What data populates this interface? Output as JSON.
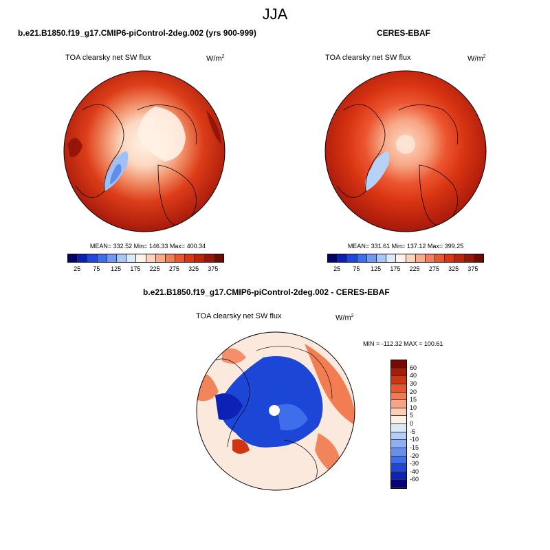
{
  "season": "JJA",
  "panels": {
    "model": {
      "title": "b.e21.B1850.f19_g17.CMIP6-piControl-2deg.002 (yrs 900-999)",
      "variable": "TOA clearsky net SW flux",
      "unit_base": "W/m",
      "unit_exp": "2",
      "stats": "MEAN= 332.52  Min= 146.33  Max= 400.34"
    },
    "obs": {
      "title": "CERES-EBAF",
      "variable": "TOA clearsky net SW flux",
      "unit_base": "W/m",
      "unit_exp": "2",
      "stats": "MEAN= 331.61  Min= 137.12  Max= 399.25"
    },
    "diff": {
      "title": "b.e21.B1850.f19_g17.CMIP6-piControl-2deg.002 - CERES-EBAF",
      "variable": "TOA clearsky net SW flux",
      "unit_base": "W/m",
      "unit_exp": "2",
      "stats": "MIN = -112.32 MAX = 100.61"
    }
  },
  "abs_colorbar": {
    "colors": [
      "#08006b",
      "#0a1fb8",
      "#1f47e0",
      "#3b6ff0",
      "#6f99f5",
      "#a8c6f8",
      "#dbe9fb",
      "#fff2e6",
      "#fdd3bb",
      "#f9ab8a",
      "#f47d58",
      "#ec5530",
      "#da3614",
      "#bf2206",
      "#9a1304",
      "#6e0902"
    ],
    "tick_labels": [
      "25",
      "75",
      "125",
      "175",
      "225",
      "275",
      "325",
      "375"
    ]
  },
  "diff_colorbar": {
    "colors": [
      "#7a0903",
      "#a81b04",
      "#cf3510",
      "#e8552b",
      "#f47b4f",
      "#f9a481",
      "#fdd0b6",
      "#fff0e3",
      "#dbe9fb",
      "#b1cdf8",
      "#8ab1f3",
      "#6591ef",
      "#3f6eea",
      "#1e47da",
      "#0b22b5",
      "#07007a"
    ],
    "tick_labels": [
      "60",
      "40",
      "30",
      "20",
      "15",
      "10",
      "5",
      "0",
      "-5",
      "-10",
      "-15",
      "-20",
      "-30",
      "-40",
      "-60"
    ]
  },
  "map_colors": {
    "ocean_dark": "#a3160a",
    "mid": "#dc3d18",
    "light": "#f29a76",
    "pale": "#fde6d6",
    "ice_blue": "#9ec0f5",
    "ice_deep": "#5f8deb",
    "diff_pos": "#f06a3a",
    "diff_neg": "#1b46d6",
    "diff_neutral": "#fbe9de"
  }
}
